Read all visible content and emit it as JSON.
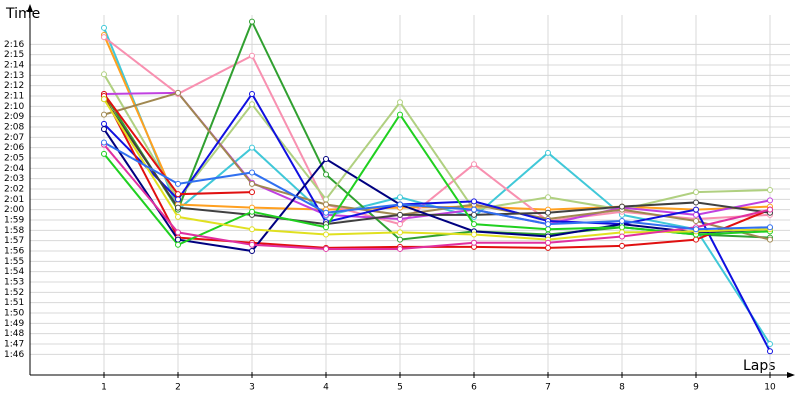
{
  "chart_data": {
    "type": "line",
    "y_label": "Time",
    "x_label": "Laps",
    "x": [
      1,
      2,
      3,
      4,
      5,
      6,
      7,
      8,
      9,
      10
    ],
    "xlim": [
      0,
      10.4
    ],
    "xticks": [
      1,
      2,
      3,
      4,
      5,
      6,
      7,
      8,
      9,
      10
    ],
    "ylim": [
      104,
      138.84
    ],
    "yticks": [
      {
        "value": 106,
        "label": "1:46"
      },
      {
        "value": 107,
        "label": "1:47"
      },
      {
        "value": 108,
        "label": "1:48"
      },
      {
        "value": 109,
        "label": "1:49"
      },
      {
        "value": 110,
        "label": "1:50"
      },
      {
        "value": 111,
        "label": "1:51"
      },
      {
        "value": 112,
        "label": "1:52"
      },
      {
        "value": 113,
        "label": "1:53"
      },
      {
        "value": 114,
        "label": "1:54"
      },
      {
        "value": 115,
        "label": "1:55"
      },
      {
        "value": 116,
        "label": "1:56"
      },
      {
        "value": 117,
        "label": "1:57"
      },
      {
        "value": 118,
        "label": "1:58"
      },
      {
        "value": 119,
        "label": "1:59"
      },
      {
        "value": 120,
        "label": "2:00"
      },
      {
        "value": 121,
        "label": "2:01"
      },
      {
        "value": 122,
        "label": "2:02"
      },
      {
        "value": 123,
        "label": "2:03"
      },
      {
        "value": 124,
        "label": "2:04"
      },
      {
        "value": 125,
        "label": "2:05"
      },
      {
        "value": 126,
        "label": "2:06"
      },
      {
        "value": 127,
        "label": "2:07"
      },
      {
        "value": 128,
        "label": "2:08"
      },
      {
        "value": 129,
        "label": "2:09"
      },
      {
        "value": 130,
        "label": "2:10"
      },
      {
        "value": 131,
        "label": "2:11"
      },
      {
        "value": 132,
        "label": "2:12"
      },
      {
        "value": 133,
        "label": "2:13"
      },
      {
        "value": 134,
        "label": "2:14"
      },
      {
        "value": 135,
        "label": "2:15"
      },
      {
        "value": 136,
        "label": "2:16"
      }
    ],
    "grid": true,
    "series": [
      {
        "color": "#40c8d8",
        "values": [
          137.6,
          120.0,
          126.0,
          119.4,
          121.2,
          119.3,
          125.5,
          119.5,
          118.1,
          107.0
        ]
      },
      {
        "color": "#ffa020",
        "values": [
          136.9,
          120.5,
          120.2,
          120.0,
          120.2,
          120.3,
          120.0,
          120.3,
          120.0,
          120.3
        ]
      },
      {
        "color": "#f890b0",
        "values": [
          136.7,
          131.2,
          134.9,
          120.5,
          118.6,
          124.4,
          118.9,
          119.8,
          119.1,
          119.5
        ]
      },
      {
        "color": "#30a030",
        "values": [
          131.2,
          120.0,
          138.2,
          123.4,
          117.1,
          117.9,
          117.6,
          118.3,
          117.6,
          117.3
        ]
      },
      {
        "color": "#b0d080",
        "values": [
          133.1,
          121.0,
          130.2,
          121.0,
          130.4,
          120.0,
          121.2,
          120.0,
          121.7,
          121.9
        ]
      },
      {
        "color": "#c040e0",
        "values": [
          131.2,
          131.3,
          122.6,
          119.5,
          119.1,
          120.0,
          118.6,
          120.2,
          119.5,
          120.9
        ]
      },
      {
        "color": "#a08850",
        "values": [
          129.2,
          131.3,
          122.5,
          120.5,
          119.5,
          120.5,
          119.1,
          120.0,
          118.9,
          117.1
        ]
      },
      {
        "color": "#1010e0",
        "values": [
          128.3,
          121.0,
          131.2,
          118.8,
          120.5,
          120.8,
          118.9,
          118.6,
          120.0,
          106.3
        ]
      },
      {
        "color": "#e01010",
        "values": [
          131.2,
          121.5,
          121.7,
          null,
          null,
          null,
          null,
          null,
          null,
          null
        ]
      },
      {
        "color": "#e01010",
        "values": [
          131.0,
          117.3,
          116.8,
          116.3,
          116.4,
          116.4,
          116.3,
          116.5,
          117.1,
          120.0
        ]
      },
      {
        "color": "#404040",
        "values": [
          130.7,
          120.2,
          119.5,
          118.6,
          119.5,
          119.5,
          119.7,
          120.3,
          120.7,
          119.7
        ]
      },
      {
        "color": "#000080",
        "values": [
          127.8,
          117.1,
          116.0,
          124.9,
          120.5,
          117.9,
          117.4,
          118.6,
          117.8,
          118.1
        ]
      },
      {
        "color": "#20d020",
        "values": [
          125.4,
          116.6,
          119.8,
          118.3,
          129.2,
          118.6,
          118.1,
          118.3,
          117.6,
          117.9
        ]
      },
      {
        "color": "#e0e020",
        "values": [
          130.7,
          119.3,
          118.1,
          117.6,
          117.8,
          117.6,
          117.1,
          117.8,
          117.9,
          118.1
        ]
      },
      {
        "color": "#e030a0",
        "values": [
          126.3,
          117.8,
          116.6,
          116.2,
          116.2,
          116.8,
          116.8,
          117.4,
          118.3,
          120.0
        ]
      },
      {
        "color": "#3070f0",
        "values": [
          126.5,
          122.5,
          123.6,
          119.7,
          120.5,
          120.0,
          118.6,
          118.9,
          118.1,
          118.3
        ]
      }
    ]
  }
}
